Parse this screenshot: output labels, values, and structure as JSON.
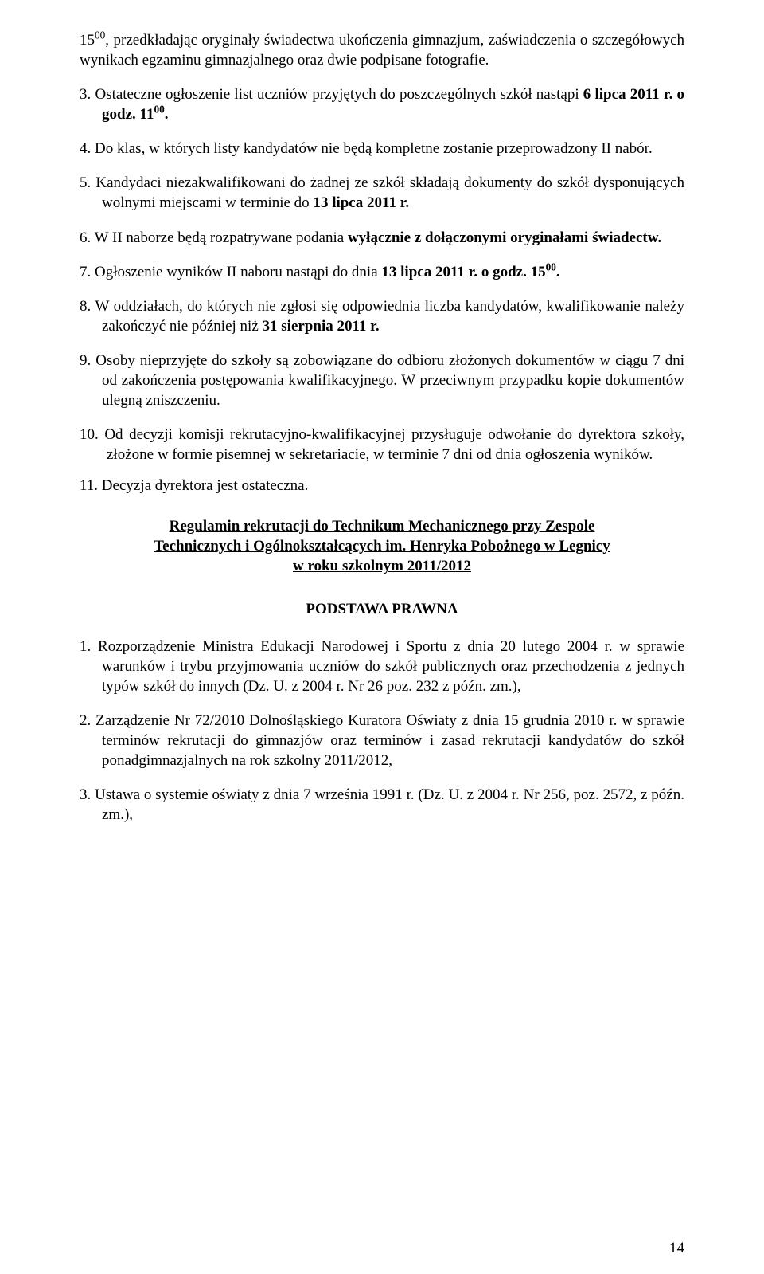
{
  "top_para": {
    "leading": "15",
    "sup": "00",
    "rest": ", przedkładając oryginały świadectwa ukończenia gimnazjum, zaświadczenia o szczegółowych wynikach egzaminu gimnazjalnego oraz dwie podpisane fotografie."
  },
  "items": {
    "i3": {
      "num": "3.",
      "t1": "Ostateczne ogłoszenie list uczniów przyjętych do poszczególnych szkół nastąpi ",
      "b1": "6 lipca 2011 r. o godz. 11",
      "sup": "00",
      "b2": "."
    },
    "i4": {
      "num": "4.",
      "text": "Do klas, w których listy kandydatów nie będą kompletne zostanie przeprowadzony II nabór."
    },
    "i5": {
      "num": "5.",
      "t1": "Kandydaci niezakwalifikowani do żadnej ze szkół składają dokumenty do szkół dysponujących wolnymi miejscami w terminie do ",
      "b1": "13 lipca 2011 r."
    },
    "i6": {
      "num": "6.",
      "t1": "W II naborze będą rozpatrywane podania ",
      "b1": "wyłącznie z dołączonymi oryginałami świadectw."
    },
    "i7": {
      "num": "7.",
      "t1": "Ogłoszenie wyników II naboru nastąpi do dnia ",
      "b1": "13 lipca 2011 r. o godz. 15",
      "sup": "00",
      "b2": "."
    },
    "i8": {
      "num": "8.",
      "t1": "W oddziałach, do których nie zgłosi się odpowiednia liczba kandydatów, kwalifikowanie należy zakończyć nie później niż ",
      "b1": "31 sierpnia 2011 r."
    },
    "i9": {
      "num": "9.",
      "text": "Osoby nieprzyjęte do szkoły są zobowiązane do odbioru złożonych dokumentów w ciągu 7 dni od zakończenia postępowania kwalifikacyjnego. W przeciwnym przypadku kopie dokumentów ulegną zniszczeniu."
    },
    "i10": {
      "num": "10.",
      "text": "Od decyzji komisji rekrutacyjno-kwalifikacyjnej przysługuje odwołanie do dyrektora szkoły, złożone w formie pisemnej w sekretariacie, w terminie 7 dni od dnia ogłoszenia wyników."
    },
    "i11": {
      "num": "11.",
      "text": "Decyzja dyrektora jest ostateczna."
    }
  },
  "heading": {
    "l1": "Regulamin rekrutacji do Technikum Mechanicznego przy Zespole",
    "l2": "Technicznych i Ogólnokształcących im. Henryka Pobożnego w Legnicy",
    "l3": "w roku szkolnym 2011/2012"
  },
  "section_title": "PODSTAWA PRAWNA",
  "basis": {
    "b1": {
      "num": "1.",
      "text": "Rozporządzenie Ministra Edukacji Narodowej i Sportu z dnia 20 lutego 2004 r. w sprawie warunków i trybu przyjmowania uczniów do szkół publicznych oraz przechodzenia z jednych typów szkół do innych (Dz. U. z 2004 r. Nr 26 poz. 232 z późn. zm.),"
    },
    "b2": {
      "num": "2.",
      "text": "Zarządzenie Nr 72/2010 Dolnośląskiego Kuratora Oświaty z dnia 15 grudnia 2010 r. w sprawie terminów rekrutacji do gimnazjów oraz terminów i zasad rekrutacji kandydatów do szkół ponadgimnazjalnych na rok szkolny 2011/2012,"
    },
    "b3": {
      "num": "3.",
      "text": "Ustawa o systemie oświaty z dnia 7 września 1991 r. (Dz. U. z 2004 r. Nr 256, poz. 2572, z późn. zm.),"
    }
  },
  "page_number": "14"
}
